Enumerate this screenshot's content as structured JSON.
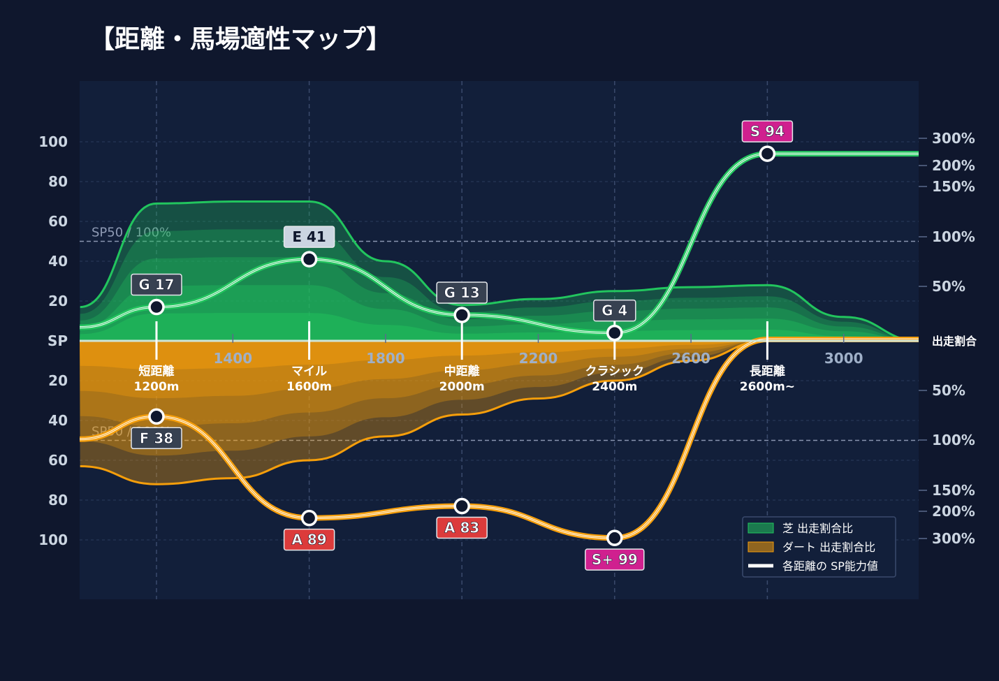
{
  "title": "【距離・馬場適性マップ】",
  "colors": {
    "background": "#0f172d",
    "plot_background": "#121f3a",
    "turf": "#22c55e",
    "dirt": "#f59e0b",
    "grid": "#2b3b5c",
    "axis_text": "#cbd5e1",
    "grade_gray": "#374151",
    "grade_light": "#cbd5e1",
    "grade_red": "#dc3b3b",
    "grade_magenta": "#d0208f"
  },
  "chart_data": {
    "type": "area",
    "x_ticks": [
      "1400",
      "1800",
      "2200",
      "2600",
      "3000"
    ],
    "y_ticks_sp": [
      "100",
      "80",
      "60",
      "40",
      "20",
      "SP",
      "20",
      "40",
      "60",
      "80",
      "100"
    ],
    "right_ticks_turf": [
      "300%",
      "200%",
      "150%",
      "100%",
      "50%"
    ],
    "right_axis_center_label": "出走割合",
    "right_ticks_dirt": [
      "50%",
      "100%",
      "150%",
      "200%",
      "300%"
    ],
    "reference_line": "SP50 / 100%",
    "distance_categories": [
      {
        "name": "短距離",
        "distance": "1200m",
        "x": 1200
      },
      {
        "name": "マイル",
        "distance": "1600m",
        "x": 1600
      },
      {
        "name": "中距離",
        "distance": "2000m",
        "x": 2000
      },
      {
        "name": "クラシック",
        "distance": "2400m",
        "x": 2400
      },
      {
        "name": "長距離",
        "distance": "2600m~",
        "x": 2600
      }
    ],
    "turf_sp": [
      {
        "x": 1200,
        "sp": 17,
        "label": "G 17",
        "grade": "gray"
      },
      {
        "x": 1600,
        "sp": 41,
        "label": "E 41",
        "grade": "light"
      },
      {
        "x": 2000,
        "sp": 13,
        "label": "G 13",
        "grade": "gray"
      },
      {
        "x": 2400,
        "sp": 4,
        "label": "G 4",
        "grade": "gray"
      },
      {
        "x": 2800,
        "sp": 94,
        "label": "S 94",
        "grade": "magenta"
      }
    ],
    "dirt_sp": [
      {
        "x": 1200,
        "sp": 38,
        "label": "F 38",
        "grade": "gray"
      },
      {
        "x": 1600,
        "sp": 89,
        "label": "A 89",
        "grade": "red"
      },
      {
        "x": 2000,
        "sp": 83,
        "label": "A 83",
        "grade": "red"
      },
      {
        "x": 2400,
        "sp": 99,
        "label": "S+ 99",
        "grade": "magenta"
      }
    ],
    "turf_share": [
      [
        1000,
        17
      ],
      [
        1200,
        69
      ],
      [
        1400,
        70
      ],
      [
        1600,
        70
      ],
      [
        1800,
        40
      ],
      [
        2000,
        18
      ],
      [
        2200,
        21
      ],
      [
        2400,
        25
      ],
      [
        2600,
        27
      ],
      [
        2800,
        28
      ],
      [
        3000,
        12
      ],
      [
        3200,
        0
      ]
    ],
    "dirt_share": [
      [
        1000,
        63
      ],
      [
        1200,
        72
      ],
      [
        1400,
        69
      ],
      [
        1600,
        60
      ],
      [
        1800,
        48
      ],
      [
        2000,
        37
      ],
      [
        2200,
        29
      ],
      [
        2400,
        20
      ],
      [
        2600,
        10
      ],
      [
        2800,
        0
      ],
      [
        3200,
        0
      ]
    ],
    "x_range": [
      1000,
      3200
    ],
    "y_range": [
      -110,
      110
    ]
  },
  "legend": [
    {
      "label": "芝 出走割合比",
      "color": "#22c55e"
    },
    {
      "label": "ダート 出走割合比",
      "color": "#f59e0b"
    },
    {
      "label": "各距離の SP能力値",
      "color": "#ffffff"
    }
  ]
}
